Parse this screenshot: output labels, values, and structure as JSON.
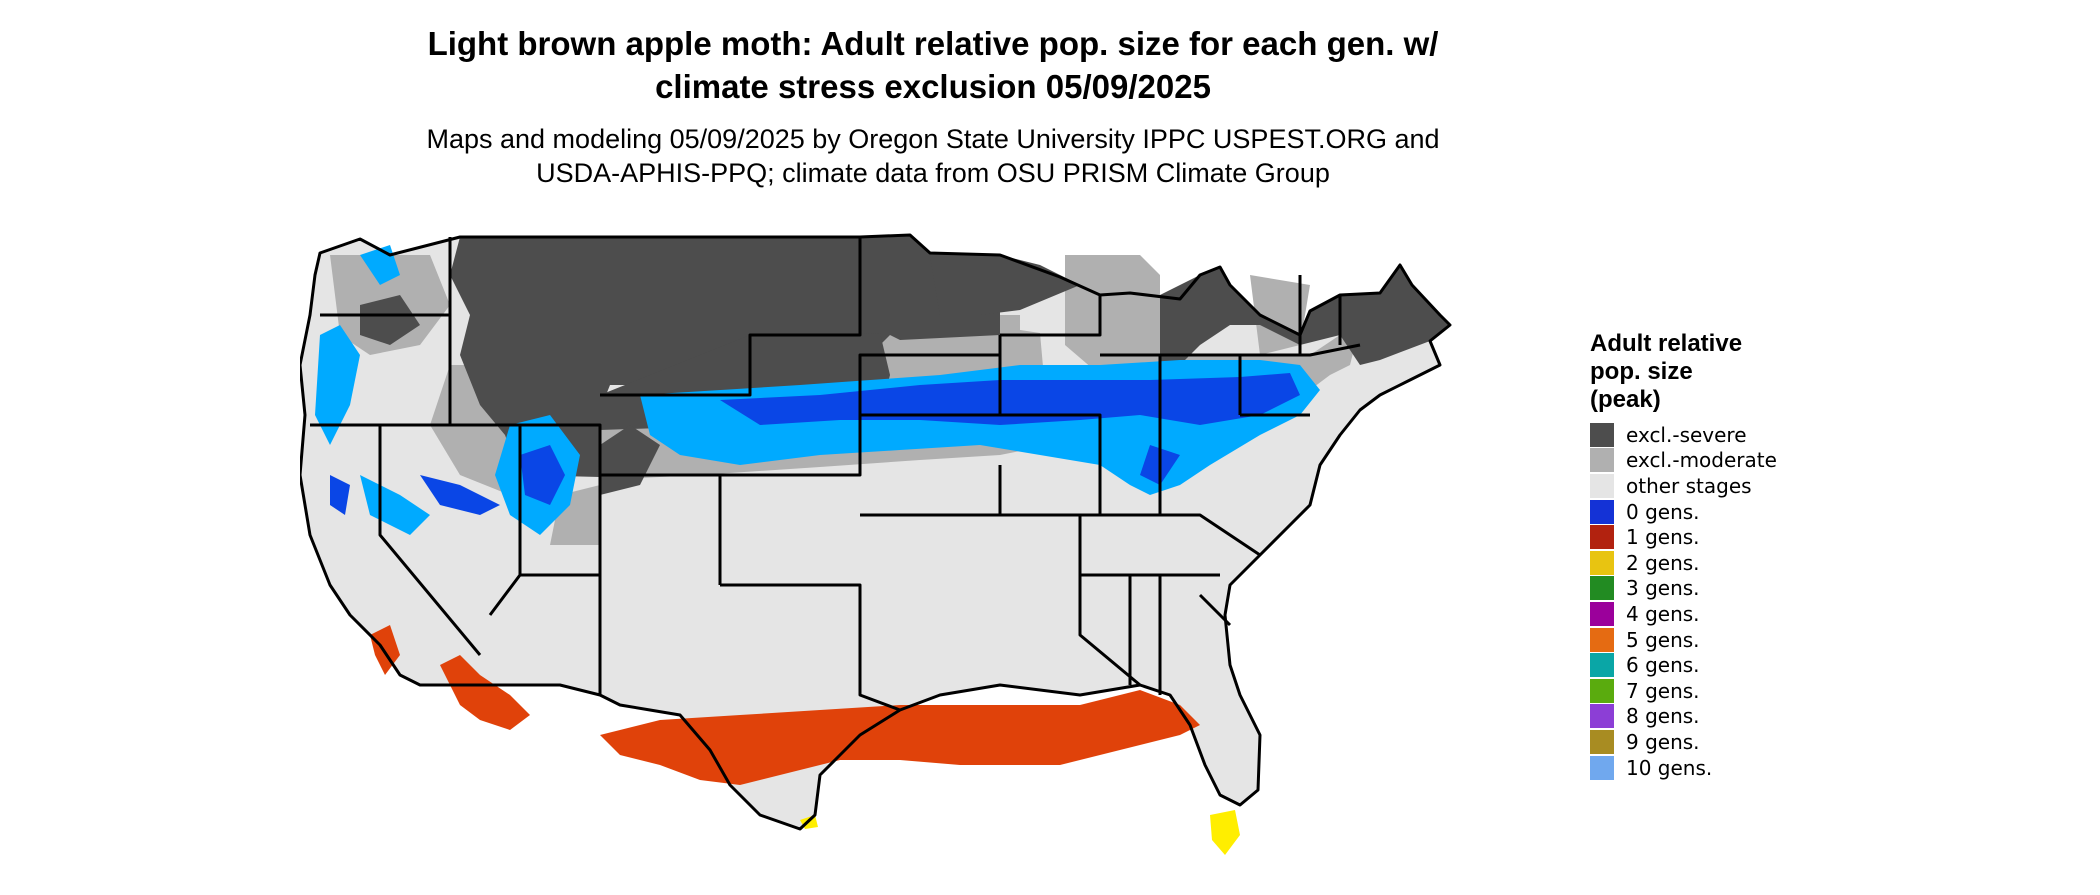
{
  "title_line1": "Light brown apple moth: Adult relative pop. size for each gen. w/",
  "title_line2": "climate stress exclusion 05/09/2025",
  "subtitle_line1": "Maps and modeling 05/09/2025 by Oregon State University IPPC USPEST.ORG and",
  "subtitle_line2": "USDA-APHIS-PPQ; climate data from OSU PRISM Climate Group",
  "legend": {
    "title_line1": "Adult relative",
    "title_line2": "pop. size",
    "title_line3": "(peak)",
    "items": [
      {
        "label": "excl.-severe",
        "color": "#4d4d4d"
      },
      {
        "label": "excl.-moderate",
        "color": "#b0b0b0"
      },
      {
        "label": "other stages",
        "color": "#e5e5e5"
      },
      {
        "label": "0 gens.",
        "color": "#1432d6"
      },
      {
        "label": "1 gens.",
        "color": "#b2220f"
      },
      {
        "label": "2 gens.",
        "color": "#e8c411"
      },
      {
        "label": "3 gens.",
        "color": "#228b22"
      },
      {
        "label": "4 gens.",
        "color": "#9b009b"
      },
      {
        "label": "5 gens.",
        "color": "#e56b12"
      },
      {
        "label": "6 gens.",
        "color": "#0aa6a6"
      },
      {
        "label": "7 gens.",
        "color": "#5aab0e"
      },
      {
        "label": "8 gens.",
        "color": "#8c3ed6"
      },
      {
        "label": "9 gens.",
        "color": "#a88c22"
      },
      {
        "label": "10 gens.",
        "color": "#70a8ee"
      }
    ]
  },
  "map_colors": {
    "severe": "#4d4d4d",
    "moderate": "#b0b0b0",
    "other": "#e5e5e5",
    "blue": "#0a46e6",
    "lightblue": "#00aaff",
    "red": "#e0420a",
    "yellow": "#ffee00",
    "border": "#000000"
  }
}
